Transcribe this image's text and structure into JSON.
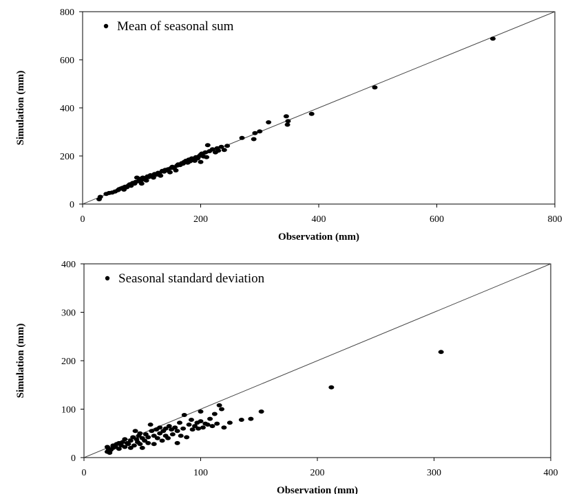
{
  "chart_data": [
    {
      "type": "scatter",
      "xlabel": "Observation (mm)",
      "ylabel": "Simulation (mm)",
      "xlim": [
        0,
        800
      ],
      "ylim": [
        0,
        800
      ],
      "xticks": [
        "0",
        "200",
        "400",
        "600",
        "800"
      ],
      "yticks": [
        "0",
        "200",
        "400",
        "600",
        "800"
      ],
      "legend": {
        "label": "Mean of seasonal sum",
        "position": "top-left"
      },
      "reference_line": "1:1",
      "series": [
        {
          "name": "Mean of seasonal sum",
          "color": "#000000",
          "points": [
            [
              28,
              20
            ],
            [
              30,
              30
            ],
            [
              40,
              42
            ],
            [
              45,
              46
            ],
            [
              50,
              48
            ],
            [
              55,
              52
            ],
            [
              60,
              58
            ],
            [
              62,
              62
            ],
            [
              65,
              65
            ],
            [
              68,
              68
            ],
            [
              70,
              60
            ],
            [
              72,
              72
            ],
            [
              75,
              70
            ],
            [
              78,
              78
            ],
            [
              80,
              82
            ],
            [
              82,
              76
            ],
            [
              85,
              88
            ],
            [
              88,
              85
            ],
            [
              90,
              92
            ],
            [
              92,
              110
            ],
            [
              95,
              95
            ],
            [
              97,
              105
            ],
            [
              100,
              100
            ],
            [
              100,
              85
            ],
            [
              102,
              110
            ],
            [
              105,
              108
            ],
            [
              108,
              98
            ],
            [
              110,
              115
            ],
            [
              112,
              112
            ],
            [
              115,
              120
            ],
            [
              118,
              116
            ],
            [
              120,
              110
            ],
            [
              122,
              125
            ],
            [
              125,
              122
            ],
            [
              128,
              130
            ],
            [
              130,
              128
            ],
            [
              132,
              118
            ],
            [
              135,
              138
            ],
            [
              138,
              135
            ],
            [
              140,
              142
            ],
            [
              142,
              140
            ],
            [
              145,
              145
            ],
            [
              148,
              132
            ],
            [
              150,
              150
            ],
            [
              152,
              155
            ],
            [
              155,
              150
            ],
            [
              158,
              140
            ],
            [
              160,
              160
            ],
            [
              162,
              165
            ],
            [
              165,
              162
            ],
            [
              168,
              170
            ],
            [
              170,
              168
            ],
            [
              172,
              175
            ],
            [
              175,
              180
            ],
            [
              178,
              172
            ],
            [
              180,
              185
            ],
            [
              182,
              178
            ],
            [
              185,
              190
            ],
            [
              188,
              188
            ],
            [
              190,
              180
            ],
            [
              192,
              195
            ],
            [
              195,
              190
            ],
            [
              198,
              200
            ],
            [
              200,
              205
            ],
            [
              200,
              175
            ],
            [
              202,
              210
            ],
            [
              205,
              198
            ],
            [
              208,
              215
            ],
            [
              210,
              195
            ],
            [
              212,
              245
            ],
            [
              215,
              220
            ],
            [
              220,
              228
            ],
            [
              225,
              215
            ],
            [
              228,
              232
            ],
            [
              230,
              222
            ],
            [
              235,
              238
            ],
            [
              240,
              225
            ],
            [
              245,
              242
            ],
            [
              270,
              275
            ],
            [
              290,
              270
            ],
            [
              292,
              295
            ],
            [
              300,
              302
            ],
            [
              315,
              340
            ],
            [
              345,
              365
            ],
            [
              347,
              330
            ],
            [
              348,
              345
            ],
            [
              388,
              375
            ],
            [
              495,
              485
            ],
            [
              695,
              688
            ]
          ]
        }
      ]
    },
    {
      "type": "scatter",
      "xlabel": "Observation (mm)",
      "ylabel": "Simulation (mm)",
      "xlim": [
        0,
        400
      ],
      "ylim": [
        0,
        400
      ],
      "xticks": [
        "0",
        "100",
        "200",
        "300",
        "400"
      ],
      "yticks": [
        "0",
        "100",
        "200",
        "300",
        "400"
      ],
      "legend": {
        "label": "Seasonal standard deviation",
        "position": "top-left"
      },
      "reference_line": "1:1",
      "series": [
        {
          "name": "Seasonal standard deviation",
          "color": "#000000",
          "points": [
            [
              20,
              12
            ],
            [
              20,
              22
            ],
            [
              21,
              18
            ],
            [
              22,
              10
            ],
            [
              23,
              16
            ],
            [
              25,
              20
            ],
            [
              25,
              25
            ],
            [
              27,
              22
            ],
            [
              28,
              28
            ],
            [
              30,
              18
            ],
            [
              30,
              30
            ],
            [
              32,
              25
            ],
            [
              33,
              32
            ],
            [
              35,
              22
            ],
            [
              35,
              38
            ],
            [
              37,
              30
            ],
            [
              38,
              28
            ],
            [
              40,
              35
            ],
            [
              40,
              20
            ],
            [
              42,
              42
            ],
            [
              43,
              25
            ],
            [
              44,
              55
            ],
            [
              45,
              38
            ],
            [
              46,
              32
            ],
            [
              47,
              45
            ],
            [
              48,
              28
            ],
            [
              48,
              50
            ],
            [
              50,
              40
            ],
            [
              50,
              20
            ],
            [
              52,
              35
            ],
            [
              53,
              48
            ],
            [
              55,
              42
            ],
            [
              55,
              30
            ],
            [
              57,
              68
            ],
            [
              58,
              55
            ],
            [
              60,
              45
            ],
            [
              60,
              28
            ],
            [
              62,
              58
            ],
            [
              63,
              40
            ],
            [
              65,
              50
            ],
            [
              65,
              62
            ],
            [
              67,
              35
            ],
            [
              68,
              55
            ],
            [
              70,
              60
            ],
            [
              70,
              45
            ],
            [
              72,
              40
            ],
            [
              73,
              65
            ],
            [
              75,
              58
            ],
            [
              76,
              48
            ],
            [
              78,
              62
            ],
            [
              80,
              55
            ],
            [
              80,
              30
            ],
            [
              82,
              72
            ],
            [
              83,
              45
            ],
            [
              85,
              60
            ],
            [
              86,
              88
            ],
            [
              88,
              42
            ],
            [
              90,
              68
            ],
            [
              92,
              78
            ],
            [
              93,
              58
            ],
            [
              95,
              65
            ],
            [
              97,
              72
            ],
            [
              98,
              60
            ],
            [
              100,
              95
            ],
            [
              100,
              75
            ],
            [
              102,
              62
            ],
            [
              104,
              70
            ],
            [
              106,
              68
            ],
            [
              108,
              80
            ],
            [
              110,
              65
            ],
            [
              112,
              90
            ],
            [
              114,
              70
            ],
            [
              116,
              108
            ],
            [
              118,
              100
            ],
            [
              120,
              62
            ],
            [
              125,
              72
            ],
            [
              135,
              78
            ],
            [
              143,
              80
            ],
            [
              152,
              95
            ],
            [
              212,
              145
            ],
            [
              306,
              218
            ]
          ]
        }
      ]
    }
  ]
}
